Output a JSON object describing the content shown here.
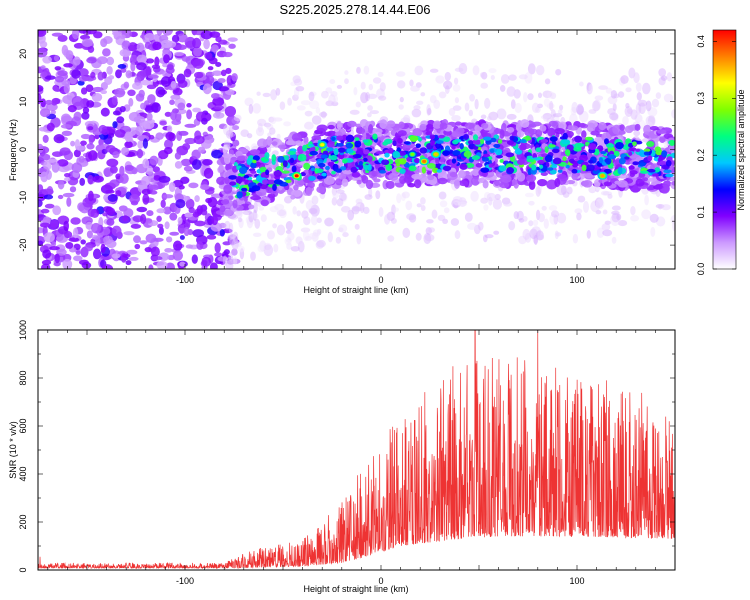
{
  "figure": {
    "title": "S225.2025.278.14.44.E06"
  },
  "chart_data": [
    {
      "type": "heatmap",
      "name": "spectrogram",
      "xlabel": "Height of straight line (km)",
      "ylabel": "Frequency (Hz)",
      "xlim": [
        -175,
        150
      ],
      "ylim": [
        -25,
        25
      ],
      "xticks": [
        -100,
        0,
        100
      ],
      "xtick_labels": [
        "-100",
        "0",
        "100"
      ],
      "yticks": [
        -20,
        -10,
        0,
        10,
        20
      ],
      "ytick_labels": [
        "-20",
        "-10",
        "0",
        "10",
        "20"
      ],
      "colorbar": {
        "label": "Normalized spectral amplitude",
        "range": [
          0,
          0.42
        ],
        "ticks": [
          0,
          0.1,
          0.2,
          0.3,
          0.4
        ],
        "tick_labels": [
          "0.0",
          "0.1",
          "0.2",
          "0.3",
          "0.4"
        ],
        "colormap": [
          "#ffffff",
          "#cc99ff",
          "#8000ff",
          "#0000ff",
          "#00c8ff",
          "#00ff80",
          "#80ff00",
          "#ffff00",
          "#ff8000",
          "#ff0000"
        ]
      },
      "signal_band": {
        "center_hz": [
          [
            -80,
            -7
          ],
          [
            -60,
            -5
          ],
          [
            -40,
            -3
          ],
          [
            -20,
            -1
          ],
          [
            0,
            -1
          ],
          [
            50,
            -1
          ],
          [
            100,
            -1
          ],
          [
            150,
            -2
          ]
        ],
        "halfwidth_hz": 5,
        "onset_km": -80
      },
      "hot_spots": [
        {
          "x": -43,
          "y": -5.5,
          "v": 0.42
        },
        {
          "x": -30,
          "y": 1,
          "v": 0.33
        },
        {
          "x": 16,
          "y": -1,
          "v": 0.28
        },
        {
          "x": 22,
          "y": -2.5,
          "v": 0.38
        },
        {
          "x": 28,
          "y": -1,
          "v": 0.35
        },
        {
          "x": 113,
          "y": -5.5,
          "v": 0.36
        }
      ]
    },
    {
      "type": "line",
      "name": "snr",
      "xlabel": "Height of straight line (km)",
      "ylabel": "SNR (10 * v/v)",
      "xlim": [
        -175,
        150
      ],
      "ylim": [
        0,
        1000
      ],
      "xticks": [
        -100,
        0,
        100
      ],
      "xtick_labels": [
        "-100",
        "0",
        "100"
      ],
      "yticks": [
        0,
        200,
        400,
        600,
        800,
        1000
      ],
      "ytick_labels": [
        "0",
        "200",
        "400",
        "600",
        "800",
        "1000"
      ],
      "color": "#ee3333",
      "envelope": [
        {
          "x": -175,
          "baseline": 8,
          "peak": 30
        },
        {
          "x": -80,
          "baseline": 8,
          "peak": 30
        },
        {
          "x": -65,
          "baseline": 10,
          "peak": 90
        },
        {
          "x": -40,
          "baseline": 15,
          "peak": 130
        },
        {
          "x": -20,
          "baseline": 30,
          "peak": 280
        },
        {
          "x": -10,
          "baseline": 50,
          "peak": 430
        },
        {
          "x": 10,
          "baseline": 100,
          "peak": 650
        },
        {
          "x": 40,
          "baseline": 130,
          "peak": 880
        },
        {
          "x": 60,
          "baseline": 140,
          "peak": 920
        },
        {
          "x": 100,
          "baseline": 140,
          "peak": 820
        },
        {
          "x": 150,
          "baseline": 130,
          "peak": 700
        }
      ],
      "peak_points": [
        [
          -174,
          55
        ],
        [
          48,
          1000
        ],
        [
          80,
          1000
        ],
        [
          115,
          790
        ],
        [
          127,
          740
        ]
      ]
    }
  ]
}
